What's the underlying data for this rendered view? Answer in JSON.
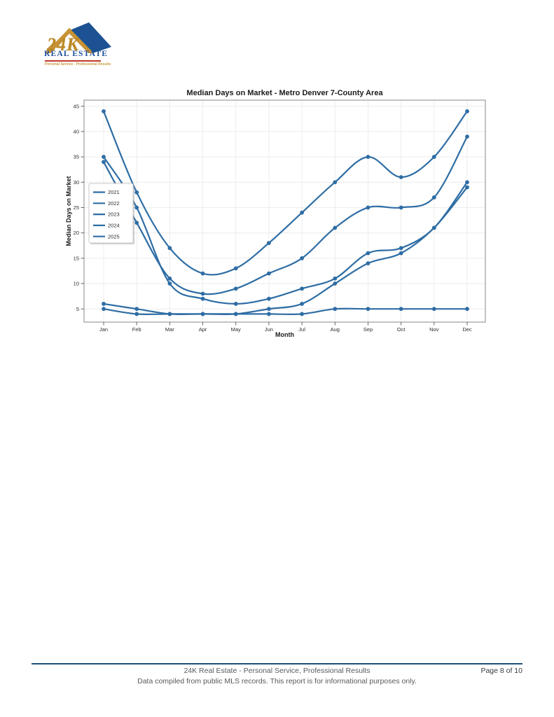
{
  "logo": {
    "brand": "24K",
    "name": "REAL ESTATE",
    "tagline": "Personal Service - Professional Results"
  },
  "chart_data": {
    "type": "line",
    "title": "Median Days on Market - Metro Denver 7-County Area",
    "xlabel": "Month",
    "ylabel": "Median Days on Market",
    "categories": [
      "Jan",
      "Feb",
      "Mar",
      "Apr",
      "May",
      "Jun",
      "Jul",
      "Aug",
      "Sep",
      "Oct",
      "Nov",
      "Dec"
    ],
    "series": [
      {
        "name": "2021",
        "values": [
          6,
          5,
          4,
          4,
          4,
          4,
          4,
          5,
          5,
          5,
          5,
          5
        ]
      },
      {
        "name": "2022",
        "values": [
          5,
          4,
          4,
          4,
          4,
          5,
          6,
          10,
          14,
          16,
          21,
          29
        ]
      },
      {
        "name": "2023",
        "values": [
          35,
          25,
          10,
          7,
          6,
          7,
          9,
          11,
          16,
          17,
          21,
          30
        ]
      },
      {
        "name": "2024",
        "values": [
          34,
          22,
          11,
          8,
          9,
          12,
          15,
          21,
          25,
          25,
          27,
          39
        ]
      },
      {
        "name": "2025",
        "values": [
          44,
          28,
          17,
          12,
          13,
          18,
          24,
          30,
          35,
          31,
          35,
          44
        ]
      }
    ],
    "yticks": [
      5,
      10,
      15,
      20,
      25,
      30,
      35,
      40,
      45
    ],
    "ylim": [
      2.4,
      46.2
    ],
    "grid": true,
    "legend_position": "left-inside",
    "line_color": "#2E6DA4"
  },
  "footer": {
    "line1": "24K Real Estate - Personal Service, Professional Results",
    "page": "Page 8 of 10",
    "line2": "Data compiled from public MLS records. This report is for informational purposes only."
  }
}
